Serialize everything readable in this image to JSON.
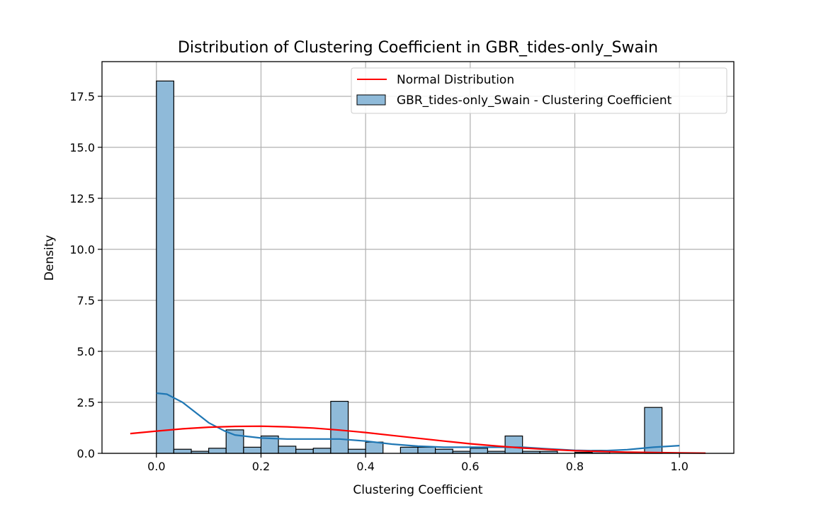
{
  "chart_data": {
    "type": "histogram",
    "title": "Distribution of Clustering Coefficient in GBR_tides-only_Swain",
    "xlabel": "Clustering Coefficient",
    "ylabel": "Density",
    "xlim": [
      -0.104,
      1.104
    ],
    "ylim": [
      0,
      19.2
    ],
    "xticks": [
      0.0,
      0.2,
      0.4,
      0.6,
      0.8,
      1.0
    ],
    "xtick_labels": [
      "0.0",
      "0.2",
      "0.4",
      "0.6",
      "0.8",
      "1.0"
    ],
    "yticks": [
      0.0,
      2.5,
      5.0,
      7.5,
      10.0,
      12.5,
      15.0,
      17.5
    ],
    "ytick_labels": [
      "0.0",
      "2.5",
      "5.0",
      "7.5",
      "10.0",
      "12.5",
      "15.0",
      "17.5"
    ],
    "grid": true,
    "legend_position": "top-right",
    "legend": [
      "Normal Distribution",
      "GBR_tides-only_Swain - Clustering Coefficient"
    ],
    "colors": {
      "bar_fill": "#8fbad9",
      "bar_edge": "#000000",
      "kde": "#1f77b4",
      "normal": "#ff0000",
      "grid": "#b0b0b0"
    },
    "histogram": {
      "bin_edges": [
        0.0,
        0.0333,
        0.0667,
        0.1,
        0.1333,
        0.1667,
        0.2,
        0.2333,
        0.2667,
        0.3,
        0.3333,
        0.3667,
        0.4,
        0.4333,
        0.4667,
        0.5,
        0.5333,
        0.5667,
        0.6,
        0.6333,
        0.6667,
        0.7,
        0.7333,
        0.7667,
        0.8,
        0.8333,
        0.8667,
        0.9,
        0.9333,
        0.9667,
        1.0
      ],
      "density": [
        18.25,
        0.2,
        0.1,
        0.25,
        1.15,
        0.3,
        0.85,
        0.35,
        0.2,
        0.25,
        2.55,
        0.2,
        0.55,
        0.0,
        0.3,
        0.3,
        0.2,
        0.1,
        0.25,
        0.1,
        0.85,
        0.1,
        0.1,
        0.0,
        0.05,
        0.15,
        0.0,
        0.0,
        2.25,
        0.0
      ]
    },
    "series": [
      {
        "name": "GBR_tides-only_Swain - Clustering Coefficient",
        "kind": "kde",
        "x": [
          0.0,
          0.02,
          0.05,
          0.08,
          0.1,
          0.13,
          0.15,
          0.2,
          0.25,
          0.3,
          0.35,
          0.4,
          0.45,
          0.5,
          0.55,
          0.6,
          0.65,
          0.7,
          0.75,
          0.8,
          0.85,
          0.9,
          0.95,
          1.0
        ],
        "y": [
          2.95,
          2.9,
          2.5,
          1.9,
          1.5,
          1.1,
          0.9,
          0.75,
          0.7,
          0.7,
          0.7,
          0.6,
          0.45,
          0.35,
          0.3,
          0.3,
          0.3,
          0.3,
          0.22,
          0.15,
          0.12,
          0.18,
          0.3,
          0.38
        ]
      },
      {
        "name": "Normal Distribution",
        "kind": "line",
        "x": [
          -0.05,
          0.0,
          0.05,
          0.1,
          0.15,
          0.2,
          0.25,
          0.3,
          0.35,
          0.4,
          0.45,
          0.5,
          0.55,
          0.6,
          0.65,
          0.7,
          0.75,
          0.8,
          0.85,
          0.9,
          0.95,
          1.0,
          1.05
        ],
        "y": [
          0.97,
          1.09,
          1.2,
          1.28,
          1.32,
          1.33,
          1.3,
          1.24,
          1.14,
          1.02,
          0.88,
          0.74,
          0.6,
          0.47,
          0.36,
          0.26,
          0.19,
          0.13,
          0.09,
          0.06,
          0.04,
          0.02,
          0.01
        ]
      }
    ]
  }
}
